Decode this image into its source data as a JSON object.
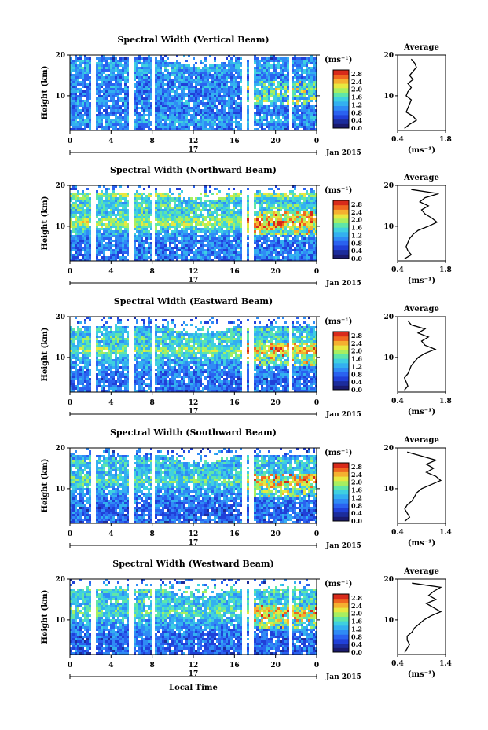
{
  "colors": {
    "palette": [
      "#1a1a6e",
      "#1c2c9c",
      "#2040d8",
      "#2a62f0",
      "#2f8bf5",
      "#33b0f0",
      "#3fd0e0",
      "#5fe6a8",
      "#a8ef60",
      "#e8e840",
      "#f5b030",
      "#f06820",
      "#d82a1a"
    ],
    "gap": "#ffffff",
    "axis": "#000000",
    "profile_line": "#000000"
  },
  "shared": {
    "xaxis_label": "Local Time",
    "date_label": "17",
    "month_label": "Jan 2015",
    "ylabel": "Height (km)",
    "unit_label": "(ms⁻¹)",
    "avg_title": "Average"
  },
  "chart_data": [
    {
      "type": "heatmap",
      "title": "Spectral Width (Vertical Beam)",
      "xlabel": "Local Time",
      "ylabel": "Height (km)",
      "x_ticks": [
        "0",
        "4",
        "8",
        "12",
        "16",
        "20",
        "0"
      ],
      "y_ticks": [
        "10",
        "20"
      ],
      "xlim": [
        0,
        24
      ],
      "ylim": [
        1.5,
        20
      ],
      "colorbar": {
        "label": "(ms⁻¹)",
        "ticks": [
          "0.0",
          "0.4",
          "0.8",
          "1.2",
          "1.6",
          "2.0",
          "2.4",
          "2.8"
        ],
        "range": [
          0,
          3.0
        ]
      },
      "gaps_hours": [
        [
          1.9,
          2.3
        ],
        [
          5.6,
          6.1
        ],
        [
          7.8,
          8.2
        ],
        [
          16.6,
          17.0
        ],
        [
          17.3,
          17.7
        ],
        [
          21.2,
          21.5
        ]
      ],
      "data_top_km": 19.5,
      "mean_sw": 0.8,
      "average_profile": {
        "title": "Average",
        "xlabel": "(ms⁻¹)",
        "x_ticks": [
          "0.4",
          "1.8"
        ],
        "xlim": [
          0.4,
          1.8
        ],
        "y_ticks": [
          "10",
          "20"
        ],
        "ylim": [
          1.5,
          20
        ],
        "height_km": [
          2,
          3,
          4,
          5,
          6,
          7,
          8,
          9,
          10,
          11,
          12,
          13,
          14,
          15,
          16,
          17,
          18,
          19
        ],
        "width": [
          0.6,
          0.75,
          0.95,
          0.85,
          0.65,
          0.7,
          0.75,
          0.8,
          0.65,
          0.7,
          0.8,
          0.7,
          0.85,
          0.75,
          0.85,
          0.95,
          0.9,
          0.8
        ]
      }
    },
    {
      "type": "heatmap",
      "title": "Spectral Width (Northward Beam)",
      "xlabel": "Local Time",
      "ylabel": "Height (km)",
      "x_ticks": [
        "0",
        "4",
        "8",
        "12",
        "16",
        "20",
        "0"
      ],
      "y_ticks": [
        "10",
        "20"
      ],
      "xlim": [
        0,
        24
      ],
      "ylim": [
        1.5,
        20
      ],
      "colorbar": {
        "label": "(ms⁻¹)",
        "ticks": [
          "0.0",
          "0.4",
          "0.8",
          "1.2",
          "1.6",
          "2.0",
          "2.4",
          "2.8"
        ],
        "range": [
          0,
          3.0
        ]
      },
      "gaps_hours": [
        [
          1.9,
          2.3
        ],
        [
          5.6,
          6.1
        ],
        [
          7.8,
          8.2
        ],
        [
          16.6,
          17.0
        ],
        [
          17.3,
          17.7
        ]
      ],
      "data_top_km": 18.5,
      "mean_sw": 0.9,
      "average_profile": {
        "title": "Average",
        "xlabel": "(ms⁻¹)",
        "x_ticks": [
          "0.4",
          "1.8"
        ],
        "xlim": [
          0.4,
          1.8
        ],
        "y_ticks": [
          "10",
          "20"
        ],
        "ylim": [
          1.5,
          20
        ],
        "height_km": [
          2,
          3,
          4,
          5,
          6,
          7,
          8,
          9,
          10,
          11,
          12,
          13,
          14,
          15,
          16,
          17,
          18,
          19
        ],
        "width": [
          0.6,
          0.8,
          0.7,
          0.65,
          0.7,
          0.75,
          0.85,
          1.0,
          1.3,
          1.55,
          1.4,
          1.2,
          1.1,
          1.3,
          1.05,
          1.2,
          1.6,
          0.8
        ]
      }
    },
    {
      "type": "heatmap",
      "title": "Spectral Width (Eastward Beam)",
      "xlabel": "Local Time",
      "ylabel": "Height (km)",
      "x_ticks": [
        "0",
        "4",
        "8",
        "12",
        "16",
        "20",
        "0"
      ],
      "y_ticks": [
        "10",
        "20"
      ],
      "xlim": [
        0,
        24
      ],
      "ylim": [
        1.5,
        20
      ],
      "colorbar": {
        "label": "(ms⁻¹)",
        "ticks": [
          "0.0",
          "0.4",
          "0.8",
          "1.2",
          "1.6",
          "2.0",
          "2.4",
          "2.8"
        ],
        "range": [
          0,
          3.0
        ]
      },
      "gaps_hours": [
        [
          1.9,
          2.3
        ],
        [
          5.6,
          6.1
        ],
        [
          7.8,
          8.2
        ],
        [
          16.6,
          17.0
        ],
        [
          17.3,
          17.7
        ],
        [
          21.2,
          21.5
        ]
      ],
      "data_top_km": 18.0,
      "mean_sw": 0.9,
      "average_profile": {
        "title": "Average",
        "xlabel": "(ms⁻¹)",
        "x_ticks": [
          "0.4",
          "1.8"
        ],
        "xlim": [
          0.4,
          1.8
        ],
        "y_ticks": [
          "10",
          "20"
        ],
        "ylim": [
          1.5,
          20
        ],
        "height_km": [
          2,
          3,
          4,
          5,
          6,
          7,
          8,
          9,
          10,
          11,
          12,
          13,
          14,
          15,
          16,
          17,
          18,
          19
        ],
        "width": [
          0.6,
          0.7,
          0.65,
          0.6,
          0.7,
          0.75,
          0.8,
          0.9,
          1.0,
          1.2,
          1.5,
          1.2,
          1.1,
          1.3,
          1.0,
          1.2,
          0.8,
          0.7
        ]
      }
    },
    {
      "type": "heatmap",
      "title": "Spectral Width (Southward Beam)",
      "xlabel": "Local Time",
      "ylabel": "Height (km)",
      "x_ticks": [
        "0",
        "4",
        "8",
        "12",
        "16",
        "20",
        "0"
      ],
      "y_ticks": [
        "10",
        "20"
      ],
      "xlim": [
        0,
        24
      ],
      "ylim": [
        1.5,
        20
      ],
      "colorbar": {
        "label": "(ms⁻¹)",
        "ticks": [
          "0.0",
          "0.4",
          "0.8",
          "1.2",
          "1.6",
          "2.0",
          "2.4",
          "2.8"
        ],
        "range": [
          0,
          3.0
        ]
      },
      "gaps_hours": [
        [
          1.9,
          2.3
        ],
        [
          5.6,
          6.1
        ],
        [
          7.8,
          8.2
        ],
        [
          16.6,
          17.0
        ],
        [
          17.3,
          17.7
        ]
      ],
      "data_top_km": 18.5,
      "mean_sw": 0.9,
      "average_profile": {
        "title": "Average",
        "xlabel": "(ms⁻¹)",
        "x_ticks": [
          "0.4",
          "1.4"
        ],
        "xlim": [
          0.4,
          1.4
        ],
        "y_ticks": [
          "10",
          "20"
        ],
        "ylim": [
          1.5,
          20
        ],
        "height_km": [
          2,
          3,
          4,
          5,
          6,
          7,
          8,
          9,
          10,
          11,
          12,
          13,
          14,
          15,
          16,
          17,
          18,
          19
        ],
        "width": [
          0.55,
          0.65,
          0.6,
          0.55,
          0.6,
          0.7,
          0.75,
          0.8,
          0.9,
          1.1,
          1.3,
          1.2,
          1.0,
          1.15,
          1.0,
          1.2,
          0.9,
          0.6
        ]
      }
    },
    {
      "type": "heatmap",
      "title": "Spectral Width (Westward Beam)",
      "xlabel": "Local Time",
      "ylabel": "Height (km)",
      "x_ticks": [
        "0",
        "4",
        "8",
        "12",
        "16",
        "20",
        "0"
      ],
      "y_ticks": [
        "10",
        "20"
      ],
      "xlim": [
        0,
        24
      ],
      "ylim": [
        1.5,
        20
      ],
      "colorbar": {
        "label": "(ms⁻¹)",
        "ticks": [
          "0.0",
          "0.4",
          "0.8",
          "1.2",
          "1.6",
          "2.0",
          "2.4",
          "2.8"
        ],
        "range": [
          0,
          3.0
        ]
      },
      "gaps_hours": [
        [
          1.9,
          2.3
        ],
        [
          5.6,
          6.1
        ],
        [
          7.8,
          8.2
        ],
        [
          16.6,
          17.0
        ],
        [
          17.3,
          17.7
        ],
        [
          21.2,
          21.5
        ]
      ],
      "data_top_km": 18.0,
      "mean_sw": 0.9,
      "average_profile": {
        "title": "Average",
        "xlabel": "(ms⁻¹)",
        "x_ticks": [
          "0.4",
          "1.4"
        ],
        "xlim": [
          0.4,
          1.4
        ],
        "y_ticks": [
          "10",
          "20"
        ],
        "ylim": [
          1.5,
          20
        ],
        "height_km": [
          2,
          3,
          4,
          5,
          6,
          7,
          8,
          9,
          10,
          11,
          12,
          13,
          14,
          15,
          16,
          17,
          18,
          19
        ],
        "width": [
          0.55,
          0.6,
          0.65,
          0.6,
          0.6,
          0.7,
          0.75,
          0.85,
          0.95,
          1.1,
          1.3,
          1.15,
          1.0,
          1.2,
          1.05,
          1.15,
          1.3,
          0.7
        ]
      }
    }
  ]
}
